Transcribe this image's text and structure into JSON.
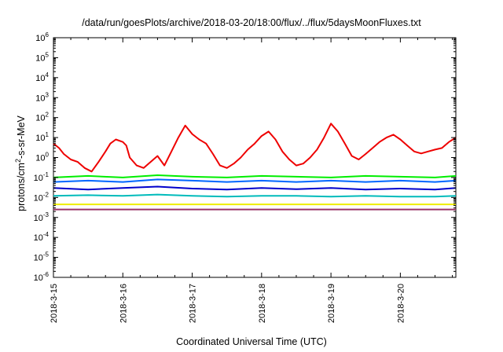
{
  "chart_data": {
    "type": "line",
    "title": "/data/run/goesPlots/archive/2018-03-20/18:00/flux/../flux/5daysMoonFluxes.txt",
    "xlabel": "Coordinated Universal Time (UTC)",
    "ylabel": {
      "prefix": "protons/cm",
      "sup": "2",
      "suffix": "-s-sr-MeV"
    },
    "x_tick_labels": [
      "2018-3-15",
      "2018-3-16",
      "2018-3-17",
      "2018-3-18",
      "2018-3-19",
      "2018-3-20"
    ],
    "x_range_days": [
      0,
      5.8
    ],
    "y_scale": "log",
    "y_exponents": [
      -6,
      -5,
      -4,
      -3,
      -2,
      -1,
      0,
      1,
      2,
      3,
      4,
      5,
      6
    ],
    "y_tick_base": "10",
    "grid": false,
    "series": [
      {
        "color": "#ee0000",
        "x": [
          0,
          0.08,
          0.15,
          0.25,
          0.35,
          0.45,
          0.55,
          0.65,
          0.75,
          0.82,
          0.9,
          1.0,
          1.05,
          1.1,
          1.2,
          1.3,
          1.4,
          1.5,
          1.6,
          1.7,
          1.8,
          1.9,
          2.0,
          2.1,
          2.2,
          2.3,
          2.4,
          2.5,
          2.6,
          2.7,
          2.8,
          2.9,
          3.0,
          3.1,
          3.2,
          3.3,
          3.4,
          3.5,
          3.6,
          3.7,
          3.8,
          3.9,
          4.0,
          4.1,
          4.2,
          4.3,
          4.4,
          4.5,
          4.6,
          4.7,
          4.8,
          4.9,
          5.0,
          5.1,
          5.2,
          5.3,
          5.4,
          5.5,
          5.6,
          5.7,
          5.8
        ],
        "y": [
          5,
          3,
          1.5,
          0.8,
          0.6,
          0.3,
          0.2,
          0.6,
          2,
          5,
          8,
          6,
          4,
          1,
          0.4,
          0.3,
          0.6,
          1.2,
          0.4,
          2,
          10,
          40,
          15,
          8,
          5,
          1.5,
          0.4,
          0.3,
          0.5,
          1,
          2.5,
          5,
          12,
          20,
          8,
          2,
          0.8,
          0.4,
          0.5,
          1,
          2.5,
          10,
          50,
          20,
          5,
          1.2,
          0.8,
          1.5,
          3,
          6,
          10,
          14,
          8,
          4,
          2,
          1.6,
          2,
          2.5,
          3,
          6,
          10
        ]
      },
      {
        "color": "#00ee00",
        "x": [
          0,
          0.5,
          1.0,
          1.5,
          2.0,
          2.5,
          3.0,
          3.5,
          4.0,
          4.5,
          5.0,
          5.5,
          5.8
        ],
        "y": [
          0.1,
          0.12,
          0.1,
          0.13,
          0.11,
          0.1,
          0.12,
          0.11,
          0.1,
          0.12,
          0.11,
          0.1,
          0.12
        ]
      },
      {
        "color": "#0066ff",
        "x": [
          0,
          0.5,
          1.0,
          1.5,
          2.0,
          2.5,
          3.0,
          3.5,
          4.0,
          4.5,
          5.0,
          5.5,
          5.8
        ],
        "y": [
          0.06,
          0.07,
          0.06,
          0.08,
          0.07,
          0.06,
          0.07,
          0.06,
          0.07,
          0.06,
          0.07,
          0.06,
          0.07
        ]
      },
      {
        "color": "#0000cc",
        "x": [
          0,
          0.5,
          1.0,
          1.5,
          2.0,
          2.5,
          3.0,
          3.5,
          4.0,
          4.5,
          5.0,
          5.5,
          5.8
        ],
        "y": [
          0.03,
          0.025,
          0.03,
          0.035,
          0.028,
          0.025,
          0.03,
          0.026,
          0.03,
          0.025,
          0.028,
          0.025,
          0.03
        ]
      },
      {
        "color": "#00bbbb",
        "x": [
          0,
          0.5,
          1.0,
          1.5,
          2.0,
          2.5,
          3.0,
          3.5,
          4.0,
          4.5,
          5.0,
          5.5,
          5.8
        ],
        "y": [
          0.012,
          0.013,
          0.012,
          0.014,
          0.012,
          0.011,
          0.012,
          0.012,
          0.011,
          0.012,
          0.011,
          0.011,
          0.012
        ]
      },
      {
        "color": "#eeee00",
        "x": [
          0,
          1,
          2,
          3,
          4,
          5,
          5.8
        ],
        "y": [
          0.0045,
          0.0045,
          0.0045,
          0.0045,
          0.0045,
          0.0045,
          0.0045
        ]
      },
      {
        "color": "#993366",
        "x": [
          0,
          1,
          2,
          3,
          4,
          5,
          5.8
        ],
        "y": [
          0.0025,
          0.0025,
          0.0025,
          0.0025,
          0.0025,
          0.0025,
          0.0025
        ]
      }
    ]
  }
}
